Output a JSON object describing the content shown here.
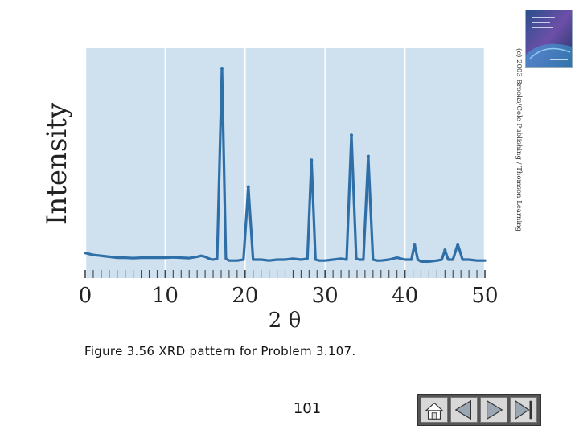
{
  "caption": "Figure 3.56 XRD pattern for Problem 3.107.",
  "page_number": "101",
  "copyright": "(c) 2003 Brooks/Cole Publishing / Thomson Learning",
  "nav_buttons": [
    {
      "name": "home-button",
      "icon": "home-icon"
    },
    {
      "name": "back-button",
      "icon": "triangle-left-icon"
    },
    {
      "name": "forward-button",
      "icon": "triangle-right-icon"
    },
    {
      "name": "end-button",
      "icon": "skip-end-icon"
    }
  ],
  "colors": {
    "plot_background": "#cfe0ef",
    "trace": "#2f6fa8",
    "gridline": "#ffffff",
    "footer_line": "#c44a4a"
  },
  "chart_data": {
    "type": "line",
    "title": "",
    "xlabel": "2 θ",
    "ylabel": "Intensity",
    "xlim": [
      0,
      50
    ],
    "ylim": [
      0,
      100
    ],
    "grid": true,
    "xticks": [
      0,
      10,
      20,
      30,
      40,
      50
    ],
    "xtick_labels": [
      "0",
      "10",
      "20",
      "30",
      "40",
      "50"
    ],
    "peaks": [
      {
        "x": 17.1,
        "height": 100
      },
      {
        "x": 20.4,
        "height": 38
      },
      {
        "x": 28.3,
        "height": 52
      },
      {
        "x": 33.3,
        "height": 65
      },
      {
        "x": 35.4,
        "height": 54
      },
      {
        "x": 41.2,
        "height": 8
      },
      {
        "x": 45.0,
        "height": 5
      },
      {
        "x": 46.6,
        "height": 8
      }
    ],
    "series": [
      {
        "x": [
          0,
          0.5,
          1,
          2,
          3,
          4,
          5,
          6,
          7,
          8,
          9,
          10,
          11,
          12,
          13,
          14,
          14.5,
          15,
          15.5,
          16,
          16.5,
          17.1,
          17.6,
          18,
          19,
          19.8,
          20.4,
          21,
          21.5,
          22,
          23,
          24,
          25,
          26,
          27,
          27.8,
          28.3,
          28.8,
          29.3,
          30,
          31,
          32,
          32.7,
          33.3,
          33.9,
          34.3,
          34.8,
          35.4,
          36,
          36.5,
          37,
          38,
          39,
          40,
          40.8,
          41.2,
          41.6,
          42,
          43,
          44,
          44.6,
          45.0,
          45.4,
          46.0,
          46.6,
          47.2,
          48,
          49,
          50
        ],
        "y": [
          3.5,
          3,
          2.5,
          2,
          1.5,
          1,
          1,
          0.8,
          1,
          1,
          1,
          1,
          1.2,
          1,
          0.8,
          1.5,
          2,
          1.5,
          0.5,
          0,
          0.5,
          100,
          0.5,
          -0.5,
          -0.5,
          0,
          38,
          0,
          0,
          0,
          -0.5,
          0,
          0,
          0.5,
          0,
          0.5,
          52,
          0,
          -0.5,
          -0.5,
          0,
          0.5,
          0,
          65,
          0.5,
          0,
          0,
          54,
          0,
          -0.5,
          -0.5,
          0,
          1,
          0,
          0,
          8,
          0,
          -1,
          -1,
          -0.5,
          0,
          5,
          0,
          0,
          8,
          0,
          0,
          -0.5,
          -0.5
        ]
      }
    ]
  }
}
